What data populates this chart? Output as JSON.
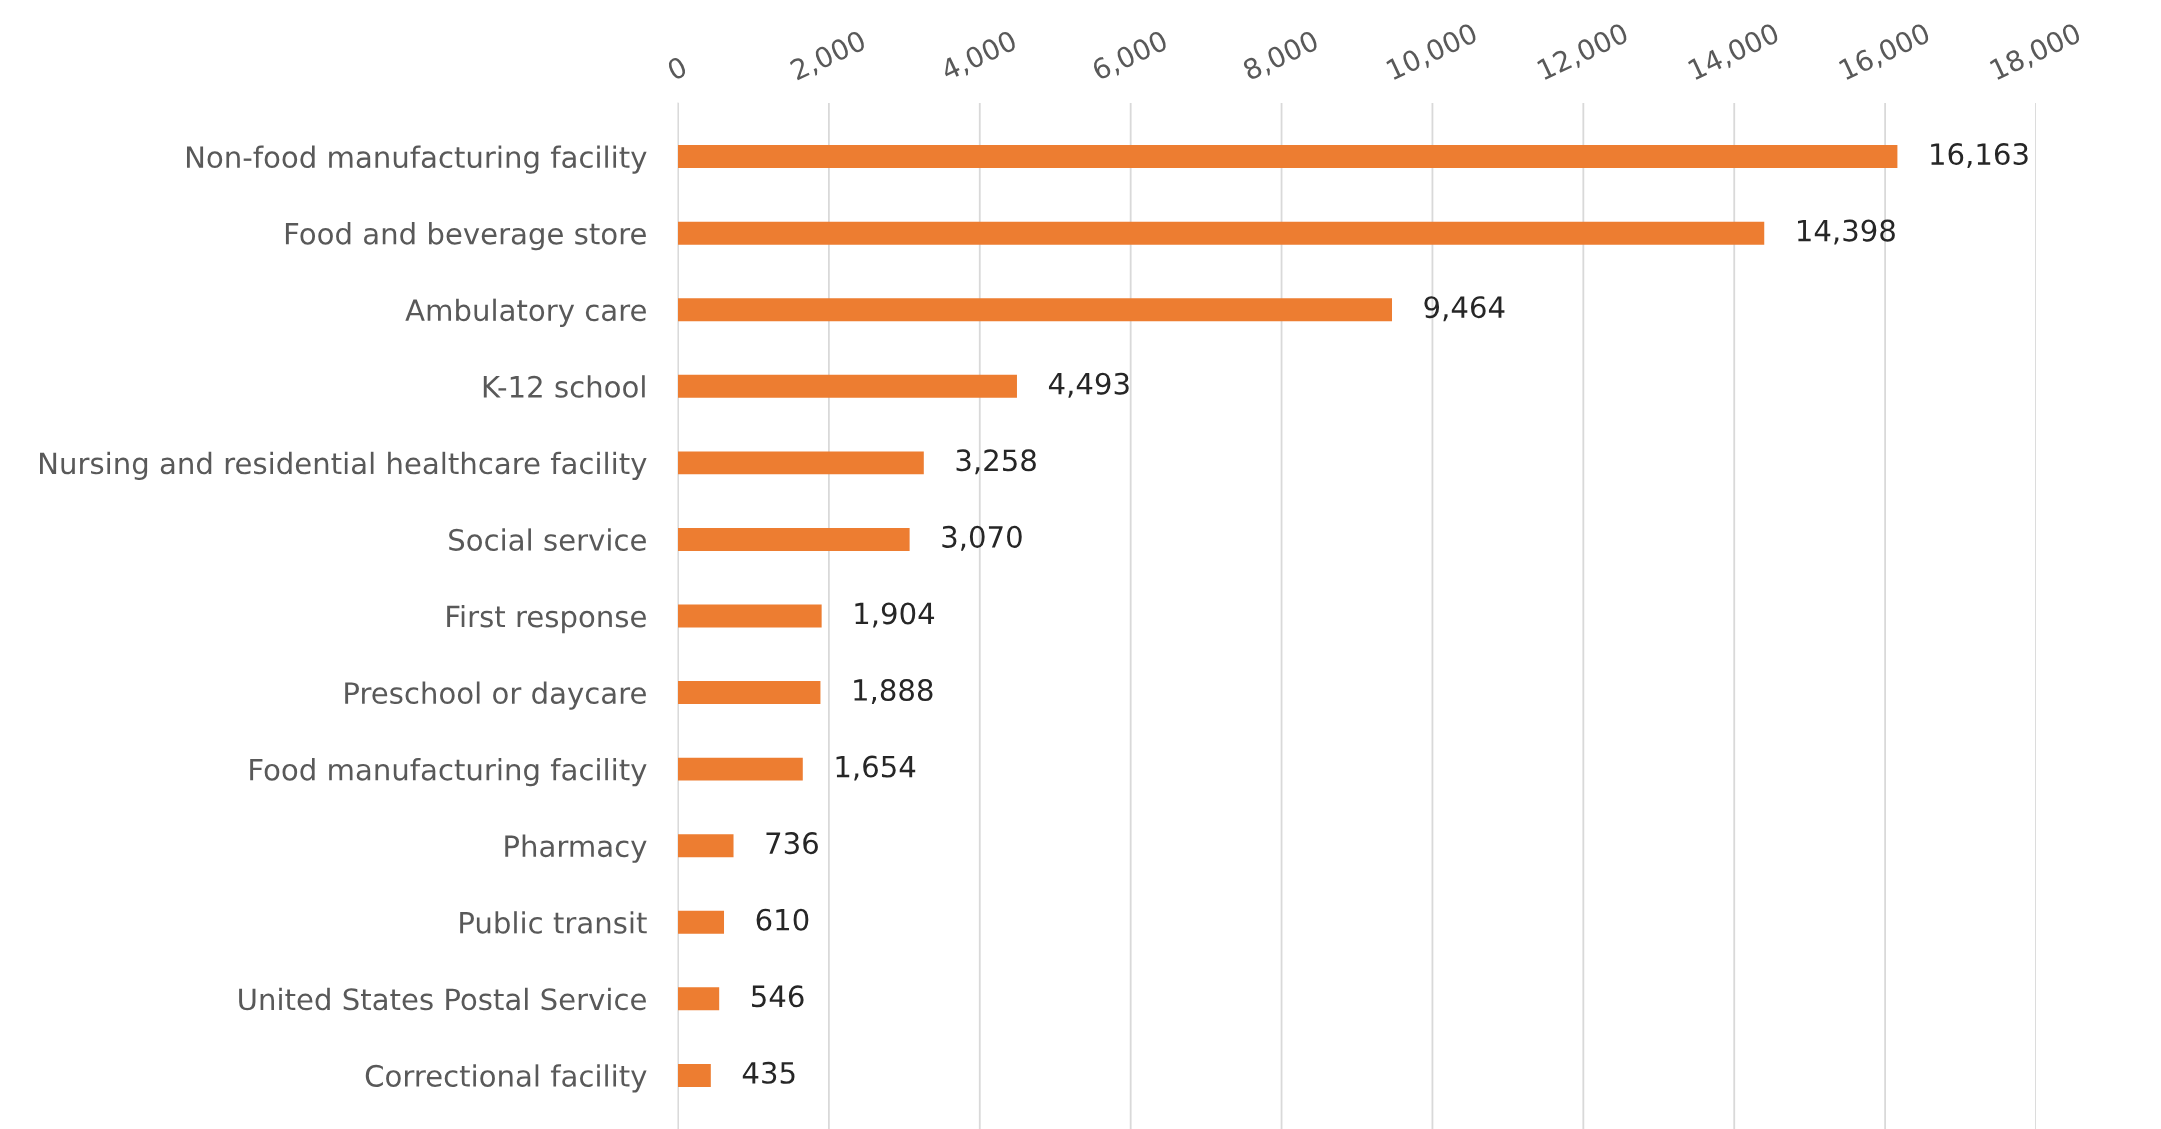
{
  "chart_data": {
    "type": "bar",
    "orientation": "horizontal",
    "categories": [
      "Non-food manufacturing facility",
      "Food and beverage store",
      "Ambulatory care",
      "K-12 school",
      "Nursing and residential healthcare facility",
      "Social service",
      "First response",
      "Preschool or daycare",
      "Food manufacturing facility",
      "Pharmacy",
      "Public transit",
      "United States Postal Service",
      "Correctional facility"
    ],
    "values": [
      16163,
      14398,
      9464,
      4493,
      3258,
      3070,
      1904,
      1888,
      1654,
      736,
      610,
      546,
      435
    ],
    "color": "#ed7d31",
    "xlim": [
      0,
      18000
    ],
    "xticks": [
      {
        "value": 0,
        "label": "0"
      },
      {
        "value": 2000,
        "label": "2,000"
      },
      {
        "value": 4000,
        "label": "4,000"
      },
      {
        "value": 6000,
        "label": "6,000"
      },
      {
        "value": 8000,
        "label": "8,000"
      },
      {
        "value": 10000,
        "label": "10,000"
      },
      {
        "value": 12000,
        "label": "12,000"
      },
      {
        "value": 14000,
        "label": "14,000"
      },
      {
        "value": 16000,
        "label": "16,000"
      },
      {
        "value": 18000,
        "label": "18,000"
      }
    ],
    "grid": "x",
    "legend": false,
    "value_labels": [
      "16,163",
      "14,398",
      "9,464",
      "4,493",
      "3,258",
      "3,070",
      "1,904",
      "1,888",
      "1,654",
      "736",
      "610",
      "546",
      "435"
    ]
  }
}
